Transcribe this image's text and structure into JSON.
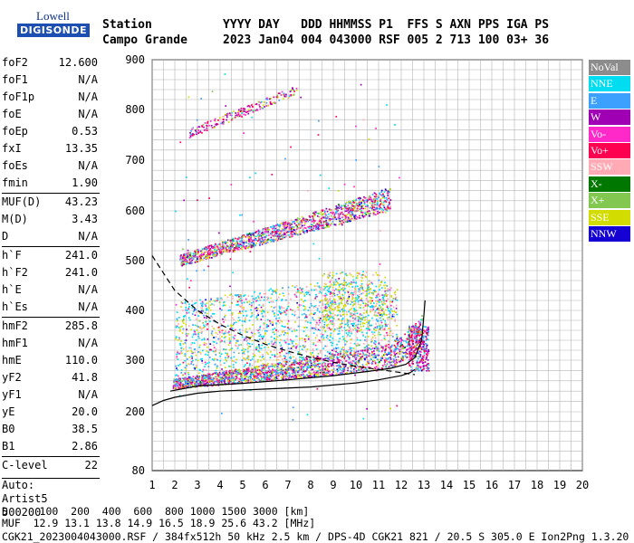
{
  "logo": {
    "line1": "Lowell",
    "line2": "DIGISONDE"
  },
  "header": {
    "row1": "Station          YYYY DAY   DDD HHMMSS P1  FFS S AXN PPS IGA PS",
    "row2": "Campo Grande     2023 Jan04 004 043000 RSF 005 2 713 100 03+ 36"
  },
  "params": [
    {
      "label": "foF2",
      "value": "12.600"
    },
    {
      "label": "foF1",
      "value": "N/A"
    },
    {
      "label": "foF1p",
      "value": "N/A"
    },
    {
      "label": "foE",
      "value": "N/A"
    },
    {
      "label": "foEp",
      "value": "0.53"
    },
    {
      "label": "fxI",
      "value": "13.35"
    },
    {
      "label": "foEs",
      "value": "N/A"
    },
    {
      "label": "fmin",
      "value": "1.90"
    },
    {
      "label": "MUF(D)",
      "value": "43.23",
      "sep": true
    },
    {
      "label": "M(D)",
      "value": "3.43"
    },
    {
      "label": "D",
      "value": "N/A"
    },
    {
      "label": "h`F",
      "value": "241.0",
      "sep": true
    },
    {
      "label": "h`F2",
      "value": "241.0"
    },
    {
      "label": "h`E",
      "value": "N/A"
    },
    {
      "label": "h`Es",
      "value": "N/A"
    },
    {
      "label": "hmF2",
      "value": "285.8",
      "sep": true
    },
    {
      "label": "hmF1",
      "value": "N/A"
    },
    {
      "label": "hmE",
      "value": "110.0"
    },
    {
      "label": "yF2",
      "value": "41.8"
    },
    {
      "label": "yF1",
      "value": "N/A"
    },
    {
      "label": "yE",
      "value": "20.0"
    },
    {
      "label": "B0",
      "value": "38.5"
    },
    {
      "label": "B1",
      "value": "2.86"
    },
    {
      "label": "C-level",
      "value": "22",
      "sep": true
    }
  ],
  "auto": {
    "line1": "Auto:",
    "line2": "Artist5",
    "line3": "500200"
  },
  "legend": [
    {
      "label": "NoVal",
      "color": "#8c8c8c"
    },
    {
      "label": "NNE",
      "color": "#00dcf0"
    },
    {
      "label": "E",
      "color": "#3ca0ff"
    },
    {
      "label": "W",
      "color": "#a000b4"
    },
    {
      "label": "Vo-",
      "color": "#ff28c8"
    },
    {
      "label": "Vo+",
      "color": "#ff0050"
    },
    {
      "label": "SSW",
      "color": "#ffaab4"
    },
    {
      "label": "X-",
      "color": "#007800"
    },
    {
      "label": "X+",
      "color": "#82c850"
    },
    {
      "label": "SSE",
      "color": "#d2dc00"
    },
    {
      "label": "NNW",
      "color": "#1400d2"
    }
  ],
  "footer": {
    "line1": "D     100  200  400  600  800 1000 1500 3000 [km]",
    "line2": "MUF  12.9 13.1 13.8 14.9 16.5 18.9 25.6 43.2 [MHz]",
    "line3": "CGK21_2023004043000.RSF / 384fx512h 50 kHz 2.5 km / DPS-4D CGK21 821 / 20.5 S 305.0 E Ion2Png 1.3.20"
  },
  "chart_data": {
    "type": "scatter",
    "xlim": [
      1,
      20
    ],
    "ylim": [
      80,
      900
    ],
    "x_ticks": [
      1,
      2,
      3,
      4,
      5,
      6,
      7,
      8,
      9,
      10,
      11,
      12,
      13,
      14,
      15,
      16,
      17,
      18,
      19,
      20
    ],
    "y_ticks": [
      80,
      200,
      300,
      400,
      500,
      600,
      700,
      800,
      900
    ],
    "grid": true,
    "legend_position": "right",
    "traces": [
      {
        "color": "#000000",
        "style": "solid",
        "points": [
          [
            1,
            212
          ],
          [
            1.5,
            222
          ],
          [
            2,
            228
          ],
          [
            3,
            236
          ],
          [
            4,
            240
          ],
          [
            6,
            244
          ],
          [
            8,
            248
          ],
          [
            10,
            256
          ],
          [
            11,
            262
          ],
          [
            12,
            270
          ],
          [
            12.4,
            276
          ],
          [
            12.6,
            282
          ]
        ]
      },
      {
        "color": "#000000",
        "style": "solid",
        "points": [
          [
            1.8,
            240
          ],
          [
            3,
            250
          ],
          [
            5,
            255
          ],
          [
            7,
            262
          ],
          [
            9,
            270
          ],
          [
            10.5,
            278
          ],
          [
            11.5,
            284
          ],
          [
            12.2,
            292
          ],
          [
            12.6,
            305
          ],
          [
            12.9,
            340
          ],
          [
            13.0,
            390
          ],
          [
            13.05,
            420
          ]
        ]
      },
      {
        "color": "#000000",
        "style": "dashed",
        "points": [
          [
            1,
            510
          ],
          [
            2,
            440
          ],
          [
            3,
            400
          ],
          [
            4,
            372
          ],
          [
            5,
            350
          ],
          [
            6,
            332
          ],
          [
            7,
            318
          ],
          [
            8,
            306
          ],
          [
            9,
            296
          ],
          [
            10,
            288
          ],
          [
            11,
            282
          ],
          [
            12,
            276
          ],
          [
            12.6,
            272
          ]
        ]
      }
    ],
    "echo_clusters": [
      {
        "name": "F2 trace",
        "x": [
          2,
          13
        ],
        "y": [
          240,
          350
        ]
      },
      {
        "name": "F2 multiple",
        "x": [
          2.2,
          11.5
        ],
        "y": [
          480,
          620
        ]
      },
      {
        "name": "F2 triple",
        "x": [
          2.5,
          7.5
        ],
        "y": [
          740,
          840
        ]
      },
      {
        "name": "spread F",
        "x": [
          2,
          12
        ],
        "y": [
          290,
          470
        ]
      }
    ]
  }
}
